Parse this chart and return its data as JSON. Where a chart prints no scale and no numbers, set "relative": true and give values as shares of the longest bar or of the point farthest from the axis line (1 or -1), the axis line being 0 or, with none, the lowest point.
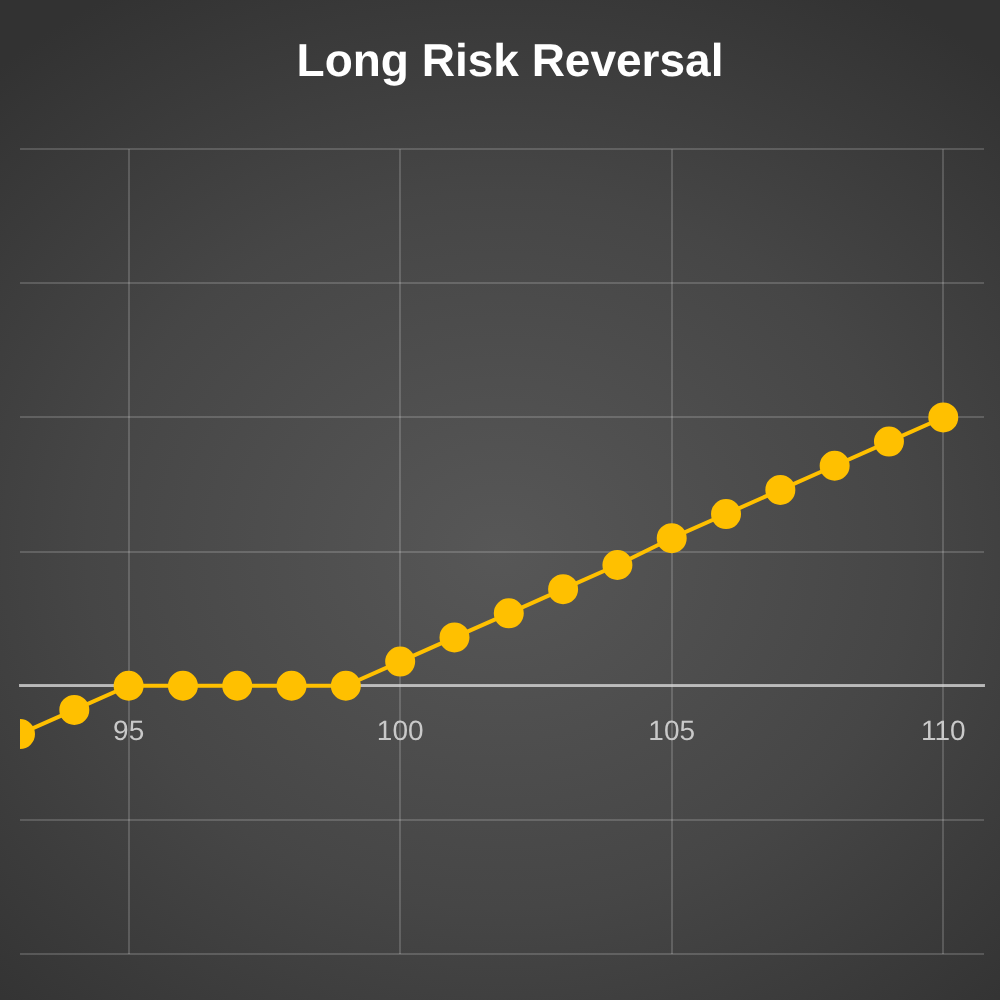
{
  "chart_data": {
    "type": "line",
    "title": "Long Risk Reversal",
    "x": [
      93,
      94,
      95,
      96,
      97,
      98,
      99,
      100,
      101,
      102,
      103,
      104,
      105,
      106,
      107,
      108,
      109,
      110
    ],
    "series": [
      {
        "color": "#ffc000",
        "values": [
          -0.18,
          -0.09,
          0,
          0,
          0,
          0,
          0,
          0.09,
          0.18,
          0.27,
          0.36,
          0.45,
          0.55,
          0.64,
          0.73,
          0.82,
          0.91,
          1
        ]
      }
    ],
    "relative": true,
    "xlim": [
      93,
      110.75
    ],
    "xticks": [
      95,
      100,
      105,
      110
    ],
    "grid": true,
    "tick_labels": "x",
    "marker": "circle",
    "line_style": "solid"
  }
}
